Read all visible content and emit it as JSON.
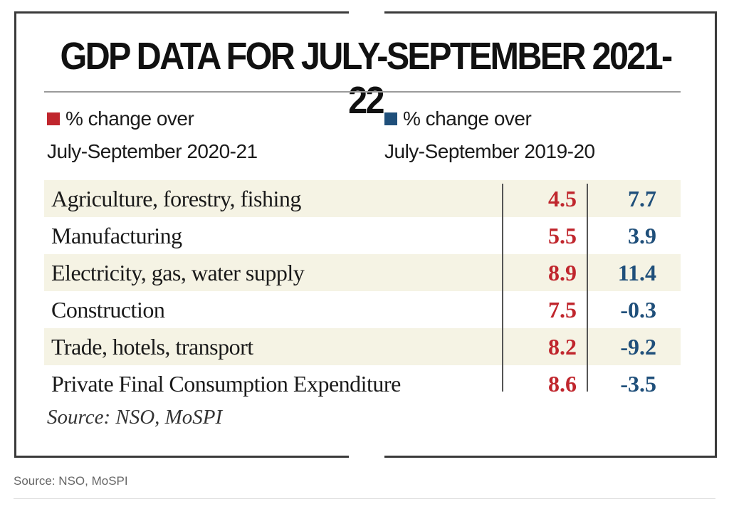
{
  "title": "GDP DATA FOR JULY-SEPTEMBER 2021-22",
  "legend": [
    {
      "line1": "% change over",
      "line2": "July-September 2020-21",
      "color": "#c0262d"
    },
    {
      "line1": "% change over",
      "line2": "July-September 2019-20",
      "color": "#1f4f7a"
    }
  ],
  "rows": [
    {
      "label": "Agriculture, forestry, fishing",
      "a": "4.5",
      "b": "7.7"
    },
    {
      "label": "Manufacturing",
      "a": "5.5",
      "b": "3.9"
    },
    {
      "label": "Electricity, gas, water supply",
      "a": "8.9",
      "b": "11.4"
    },
    {
      "label": "Construction",
      "a": "7.5",
      "b": "-0.3"
    },
    {
      "label": "Trade, hotels, transport",
      "a": "8.2",
      "b": "-9.2"
    },
    {
      "label": "Private Final Consumption Expenditure",
      "a": "8.6",
      "b": "-3.5"
    }
  ],
  "card_source": "Source: NSO, MoSPI",
  "page_source": "Source: NSO, MoSPI",
  "chart_data": {
    "type": "table",
    "title": "GDP DATA FOR JULY-SEPTEMBER 2021-22",
    "categories": [
      "Agriculture, forestry, fishing",
      "Manufacturing",
      "Electricity, gas, water supply",
      "Construction",
      "Trade, hotels, transport",
      "Private Final Consumption Expenditure"
    ],
    "series": [
      {
        "name": "% change over July-September 2020-21",
        "values": [
          4.5,
          5.5,
          8.9,
          7.5,
          8.2,
          8.6
        ],
        "color": "#c0262d"
      },
      {
        "name": "% change over July-September 2019-20",
        "values": [
          7.7,
          3.9,
          11.4,
          -0.3,
          -9.2,
          -3.5
        ],
        "color": "#1f4f7a"
      }
    ],
    "source": "Source: NSO, MoSPI"
  }
}
